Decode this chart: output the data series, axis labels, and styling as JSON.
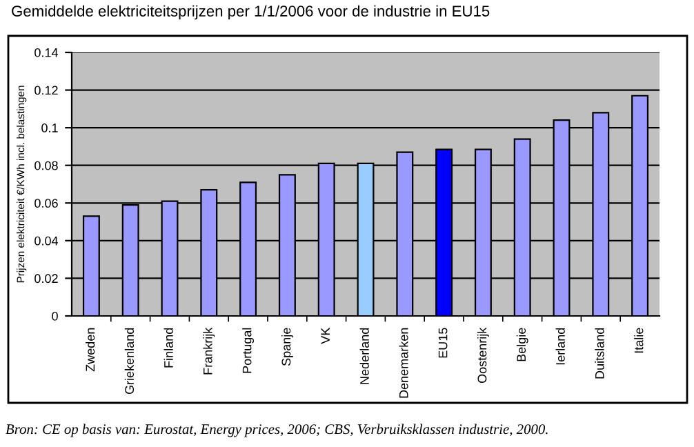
{
  "chart_data": {
    "type": "bar",
    "title": "Gemiddelde elektriciteitsprijzen per 1/1/2006 voor de industrie in EU15",
    "ylabel": "Prijzen elektriciteit €/KWh incl. belastingen",
    "categories": [
      "Zweden",
      "Griekenland",
      "Finland",
      "Frankrijk",
      "Portugal",
      "Spanje",
      "VK",
      "Nederland",
      "Denemarken",
      "EU15",
      "Oostenrijk",
      "Belgie",
      "Ierland",
      "Duitsland",
      "Italie"
    ],
    "values": [
      0.053,
      0.059,
      0.061,
      0.067,
      0.071,
      0.075,
      0.081,
      0.081,
      0.087,
      0.0885,
      0.0885,
      0.094,
      0.104,
      0.108,
      0.117
    ],
    "colors": [
      "#9999ff",
      "#9999ff",
      "#9999ff",
      "#9999ff",
      "#9999ff",
      "#9999ff",
      "#9999ff",
      "#99ccff",
      "#9999ff",
      "#0000ff",
      "#9999ff",
      "#9999ff",
      "#9999ff",
      "#9999ff",
      "#9999ff"
    ],
    "ylim": [
      0,
      0.14
    ],
    "yticks": [
      0,
      0.02,
      0.04,
      0.06,
      0.08,
      0.1,
      0.12,
      0.14
    ],
    "grid": "y",
    "annotations": [
      "Bron: CE op basis van: Eurostat, Energy prices, 2006; CBS, Verbruiksklassen industrie, 2000."
    ]
  }
}
